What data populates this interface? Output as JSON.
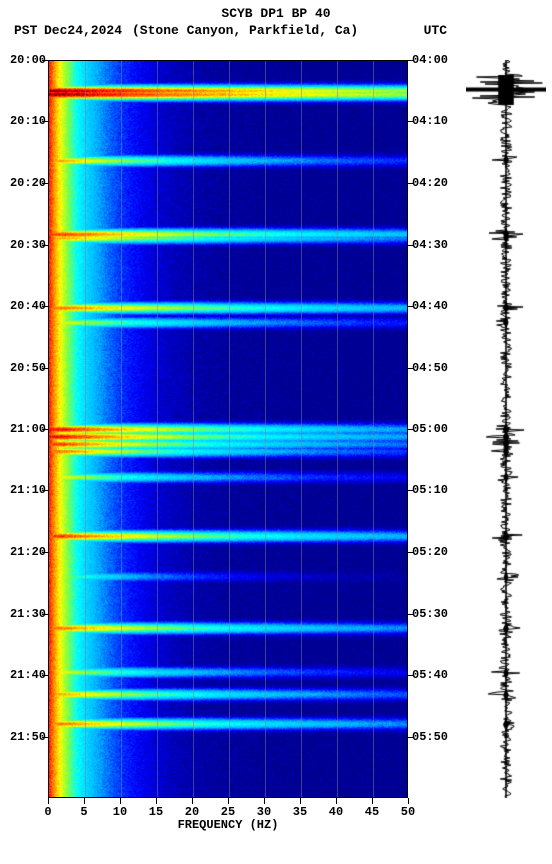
{
  "header": {
    "title": "SCYB DP1 BP 40",
    "tz_left": "PST",
    "date": "Dec24,2024",
    "station": "(Stone Canyon, Parkfield, Ca)",
    "tz_right": "UTC"
  },
  "spectrogram": {
    "type": "spectrogram",
    "xlabel": "FREQUENCY (HZ)",
    "xlim": [
      0,
      50
    ],
    "xticks": [
      0,
      5,
      10,
      15,
      20,
      25,
      30,
      35,
      40,
      45,
      50
    ],
    "left_time_ticks": [
      "20:00",
      "20:10",
      "20:20",
      "20:30",
      "20:40",
      "20:50",
      "21:00",
      "21:10",
      "21:20",
      "21:30",
      "21:40",
      "21:50"
    ],
    "right_time_ticks": [
      "04:00",
      "04:10",
      "04:20",
      "04:30",
      "04:40",
      "04:50",
      "05:00",
      "05:10",
      "05:20",
      "05:30",
      "05:40",
      "05:50"
    ],
    "time_fractions": [
      0.0,
      0.0833,
      0.1667,
      0.25,
      0.3333,
      0.4167,
      0.5,
      0.5833,
      0.6667,
      0.75,
      0.8333,
      0.9167
    ],
    "background_color": "#0000cc",
    "grid_color": "#8080a0",
    "colormap_stops": [
      {
        "v": 0.0,
        "c": "#00008b"
      },
      {
        "v": 0.12,
        "c": "#0000ff"
      },
      {
        "v": 0.3,
        "c": "#00b0ff"
      },
      {
        "v": 0.48,
        "c": "#00ffff"
      },
      {
        "v": 0.6,
        "c": "#80ff40"
      },
      {
        "v": 0.72,
        "c": "#ffff00"
      },
      {
        "v": 0.84,
        "c": "#ff8000"
      },
      {
        "v": 0.95,
        "c": "#ff0000"
      },
      {
        "v": 1.0,
        "c": "#8b0000"
      }
    ],
    "events": [
      {
        "t": 0.04,
        "strength": 1.0,
        "width": 1.0
      },
      {
        "t": 0.045,
        "strength": 1.0,
        "width": 1.0
      },
      {
        "t": 0.135,
        "strength": 0.8,
        "width": 0.3
      },
      {
        "t": 0.235,
        "strength": 0.9,
        "width": 0.5
      },
      {
        "t": 0.24,
        "strength": 0.8,
        "width": 0.4
      },
      {
        "t": 0.335,
        "strength": 0.85,
        "width": 0.5
      },
      {
        "t": 0.355,
        "strength": 0.7,
        "width": 0.3
      },
      {
        "t": 0.5,
        "strength": 0.95,
        "width": 0.4
      },
      {
        "t": 0.51,
        "strength": 0.95,
        "width": 0.4
      },
      {
        "t": 0.52,
        "strength": 0.9,
        "width": 0.35
      },
      {
        "t": 0.53,
        "strength": 0.85,
        "width": 0.3
      },
      {
        "t": 0.565,
        "strength": 0.7,
        "width": 0.25
      },
      {
        "t": 0.645,
        "strength": 0.9,
        "width": 0.45
      },
      {
        "t": 0.7,
        "strength": 0.6,
        "width": 0.15
      },
      {
        "t": 0.77,
        "strength": 0.85,
        "width": 0.4
      },
      {
        "t": 0.83,
        "strength": 0.7,
        "width": 0.25
      },
      {
        "t": 0.86,
        "strength": 0.8,
        "width": 0.35
      },
      {
        "t": 0.9,
        "strength": 0.85,
        "width": 0.4
      }
    ],
    "baseline_lowfreq_intensity": 0.92,
    "baseline_decay_hz": 6,
    "noise_speckle": 0.08
  },
  "seismogram": {
    "type": "waveform",
    "color": "#000000",
    "background": "#ffffff",
    "baseline_amp": 0.15,
    "major_event": {
      "t": 0.04,
      "amp": 1.0,
      "dur": 0.02
    }
  },
  "footer_mark": ""
}
